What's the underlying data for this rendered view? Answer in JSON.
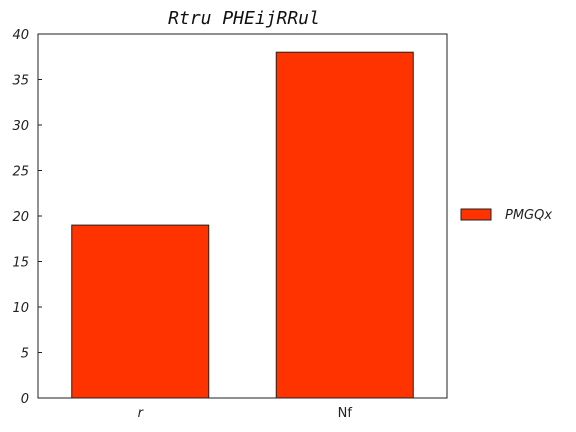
{
  "chart_data": {
    "type": "bar",
    "title": "Rtru PHEijRRul",
    "categories": [
      "r",
      "Nf"
    ],
    "series": [
      {
        "name": "PMGQx",
        "values": [
          19,
          38
        ]
      }
    ],
    "ylim": [
      0,
      40
    ],
    "yticks": [
      0,
      5,
      10,
      15,
      20,
      25,
      30,
      35,
      40
    ],
    "xlabel": "",
    "ylabel": "",
    "grid": false,
    "legend_position": "right",
    "colors": {
      "bar_fill": "#ff3300",
      "bar_edge": "#222222",
      "axis": "#222222"
    }
  }
}
